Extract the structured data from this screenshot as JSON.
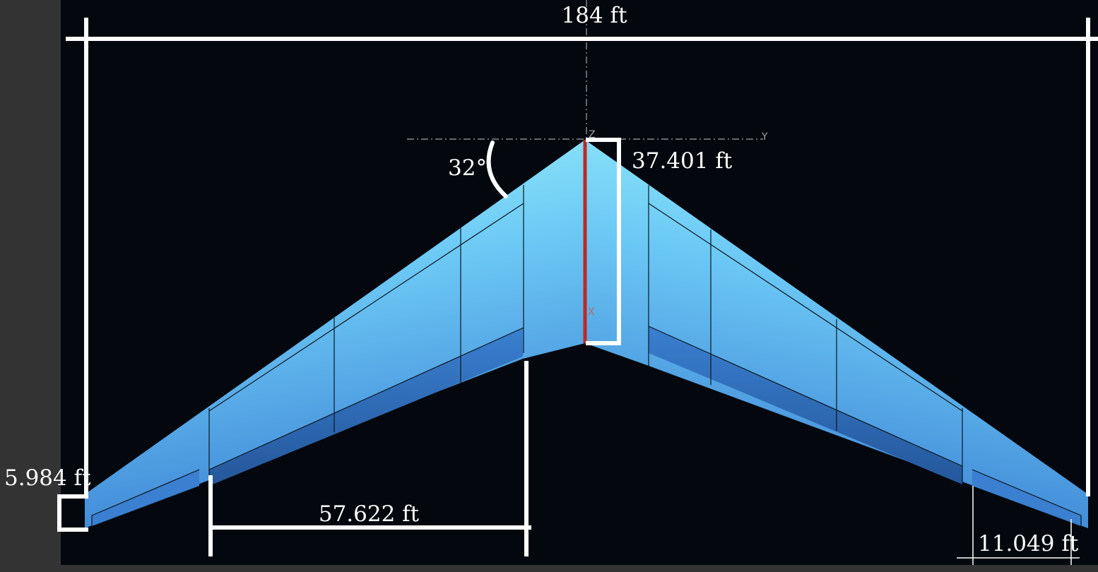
{
  "drawing": {
    "labels": {
      "span": "184 ft",
      "root_chord": "37.401 ft",
      "sweep_angle": "32°",
      "tip_chord": "5.984 ft",
      "aileron_span": "11.049 ft",
      "panel_span": "57.622 ft"
    },
    "axes": {
      "z": "Z",
      "y": "Y",
      "x": "X"
    },
    "colors": {
      "background": "#04080e",
      "margin": "#333333",
      "wing_light": "#8ff4fa",
      "wing_mid": "#5bb6f2",
      "wing_dark": "#2d6bb8",
      "dimension_lines": "#ffffff",
      "centerline": "#c0281f"
    }
  }
}
